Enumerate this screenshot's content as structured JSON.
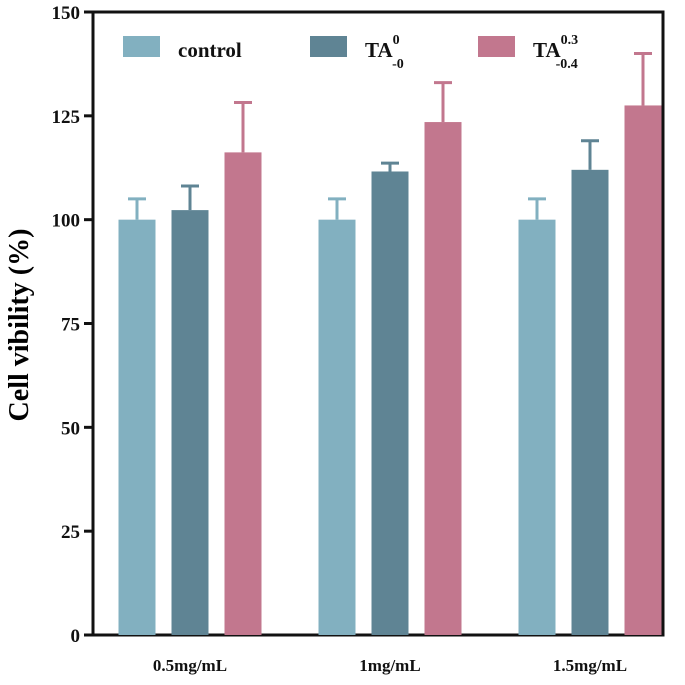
{
  "chart_data": {
    "type": "bar",
    "title": "",
    "xlabel": "",
    "ylabel": "Cell vibility (%)",
    "ylim": [
      0,
      150
    ],
    "yticks": [
      0,
      25,
      50,
      75,
      100,
      125,
      150
    ],
    "categories": [
      "0.5mg/mL",
      "1mg/mL",
      "1.5mg/mL"
    ],
    "series": [
      {
        "name": "control",
        "legend": {
          "base": "control",
          "sup": "",
          "sub": ""
        },
        "color": "#82b0c0",
        "values": [
          100,
          100,
          100
        ],
        "errors": [
          5,
          5,
          5
        ]
      },
      {
        "name": "TA0-0",
        "legend": {
          "base": "TA",
          "sup": "0",
          "sub": "-0"
        },
        "color": "#5f8494",
        "values": [
          102.3,
          111.6,
          112
        ],
        "errors": [
          5.8,
          2,
          7
        ]
      },
      {
        "name": "TA0.3-0.4",
        "legend": {
          "base": "TA",
          "sup": "0.3",
          "sub": "-0.4"
        },
        "color": "#c2778e",
        "values": [
          116.2,
          123.5,
          127.5
        ],
        "errors": [
          12,
          9.5,
          12.5
        ]
      }
    ],
    "grid": false,
    "legend_position": "top"
  }
}
